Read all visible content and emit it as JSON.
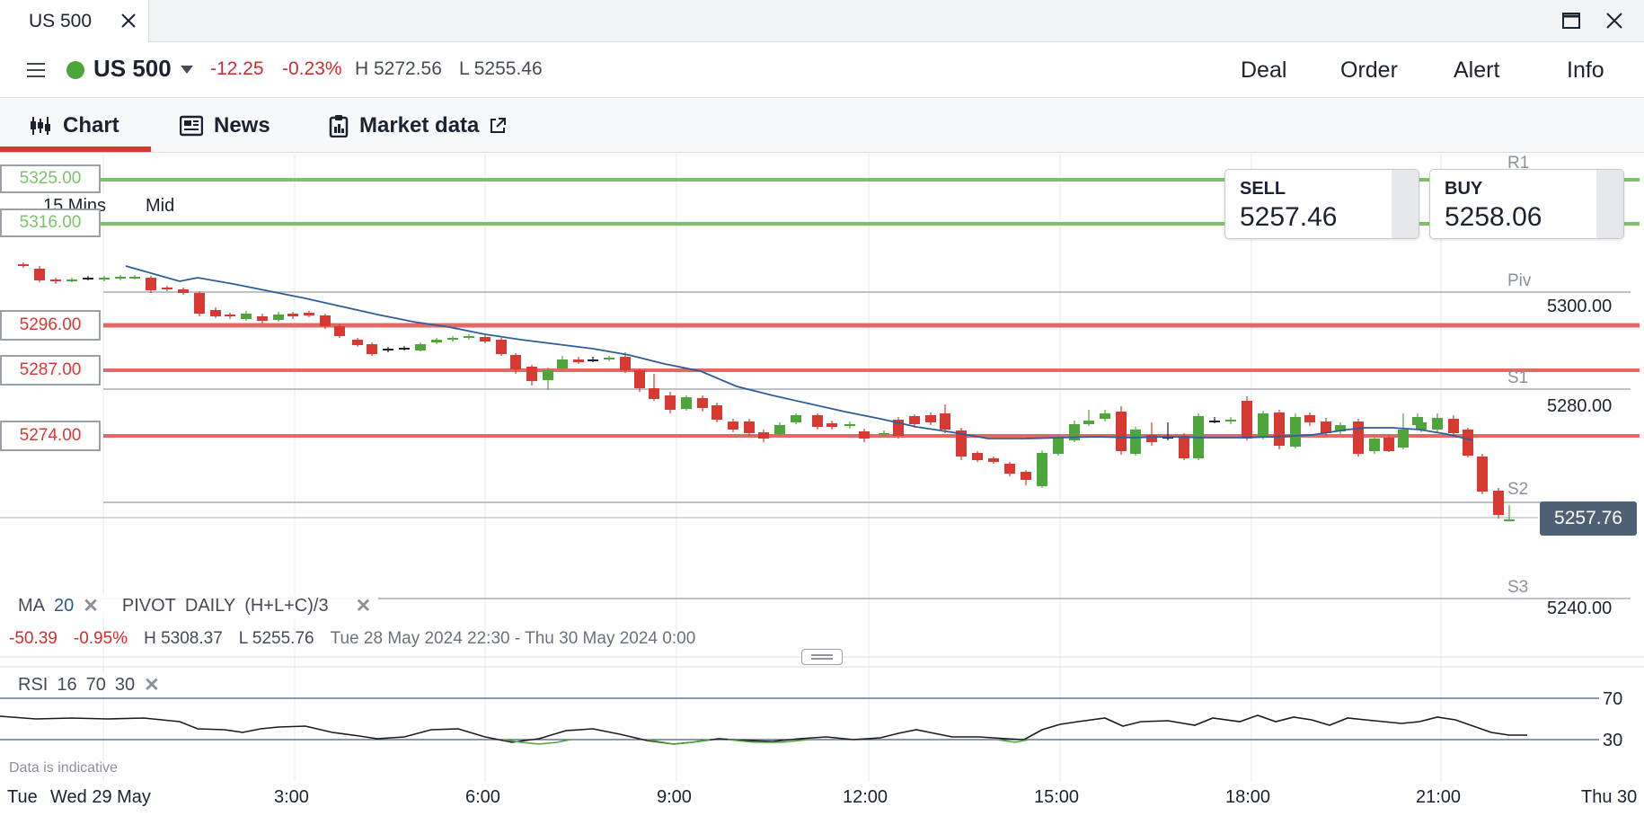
{
  "window": {
    "tab_title": "US 500"
  },
  "header": {
    "symbol": "US 500",
    "change": "-12.25",
    "change_pct": "-0.23%",
    "high": "H 5272.56",
    "low": "L 5255.46",
    "nav": {
      "deal": "Deal",
      "order": "Order",
      "alert": "Alert",
      "info": "Info"
    }
  },
  "tabs": {
    "chart": "Chart",
    "news": "News",
    "market_data": "Market data"
  },
  "chart": {
    "interval": "15 Mins",
    "price_type": "Mid",
    "sell": {
      "label": "SELL",
      "value": "5257.46"
    },
    "buy": {
      "label": "BUY",
      "value": "5258.06"
    },
    "price_tags": {
      "t5325": "5325.00",
      "t5316": "5316.00",
      "t5296": "5296.00",
      "t5287": "5287.00",
      "t5274": "5274.00"
    },
    "pivots": {
      "r1": "R1",
      "piv": "Piv",
      "s1": "S1",
      "s2": "S2",
      "s3": "S3"
    },
    "axis_prices": {
      "p5300": "5300.00",
      "p5280": "5280.00",
      "p5240": "5240.00"
    },
    "last_price": "5257.76",
    "indicators": {
      "ma_label": "MA",
      "ma_period": "20",
      "pivot_label": "PIVOT",
      "pivot_period": "DAILY",
      "pivot_formula": "(H+L+C)/3"
    },
    "stats": {
      "change": "-50.39",
      "change_pct": "-0.95%",
      "high": "H 5308.37",
      "low": "L 5255.76",
      "range": "Tue 28 May 2024 22:30 - Thu 30 May 2024 0:00"
    },
    "rsi": {
      "label": "RSI",
      "period": "16",
      "upper": "70",
      "lower": "30",
      "axis_upper": "70",
      "axis_lower": "30"
    },
    "disclaimer": "Data is indicative",
    "time_axis": {
      "left_cut": "Tue",
      "day": "Wed 29 May",
      "t0300": "3:00",
      "t0600": "6:00",
      "t0900": "9:00",
      "t1200": "12:00",
      "t1500": "15:00",
      "t1800": "18:00",
      "t2100": "21:00",
      "right_cut": "Thu 30"
    },
    "colors": {
      "up": "#4ea53b",
      "down": "#d63a33",
      "ma_line": "#2f5d9a",
      "rsi_line": "#1b1b1b",
      "rsi_low": "#4ea53b",
      "resistance": "#7cc26a",
      "support_user": "#e06a66",
      "pivot_line": "#a9adb3"
    }
  }
}
